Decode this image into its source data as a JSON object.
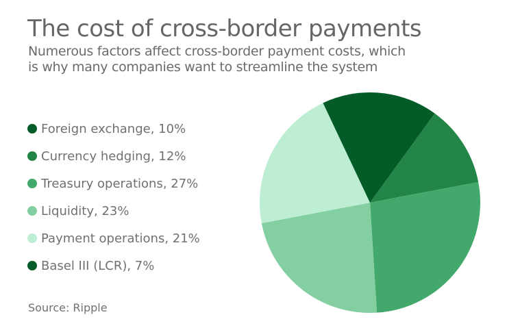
{
  "header": {
    "title": "The cost of cross-border payments",
    "subtitle": "Numerous factors affect cross-border payment costs, which is why many companies want to streamline the system"
  },
  "legend": [
    {
      "label": "Foreign exchange, 10%",
      "color": "#035c28"
    },
    {
      "label": "Currency hedging, 12%",
      "color": "#228547"
    },
    {
      "label": "Treasury operations, 27%",
      "color": "#43a86b"
    },
    {
      "label": "Liquidity, 23%",
      "color": "#83cfa2"
    },
    {
      "label": "Payment operations, 21%",
      "color": "#bdeed4"
    },
    {
      "label": "Basel III (LCR), 7%",
      "color": "#035c28"
    }
  ],
  "footer": {
    "source": "Source: Ripple"
  },
  "chart_data": {
    "type": "pie",
    "title": "The cost of cross-border payments",
    "subtitle": "Numerous factors affect cross-border payment costs, which is why many companies want to streamline the system",
    "categories": [
      "Foreign exchange",
      "Currency hedging",
      "Treasury operations",
      "Liquidity",
      "Payment operations",
      "Basel III (LCR)"
    ],
    "values": [
      10,
      12,
      27,
      23,
      21,
      7
    ],
    "colors": [
      "#035c28",
      "#228547",
      "#43a86b",
      "#83cfa2",
      "#bdeed4",
      "#035c28"
    ],
    "start_angle": "12 o'clock",
    "direction": "clockwise",
    "legend_position": "left",
    "source": "Source: Ripple"
  }
}
